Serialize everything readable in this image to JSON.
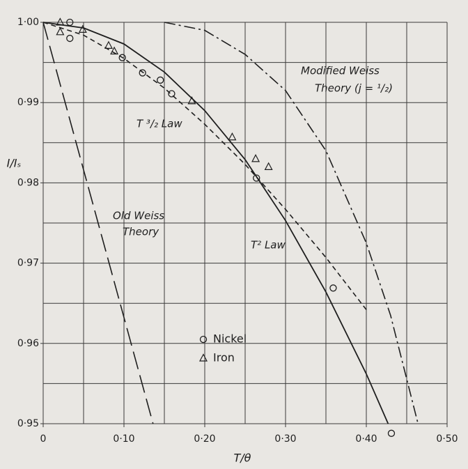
{
  "chart_data": {
    "type": "line",
    "xlabel": "T/θ",
    "ylabel": "I/Iₛ",
    "xlim": [
      0,
      0.5
    ],
    "ylim": [
      0.95,
      1.0
    ],
    "xticks": [
      0,
      {
        "value": 0.1,
        "label": "0·10"
      },
      {
        "value": 0.2,
        "label": "0·20"
      },
      {
        "value": 0.3,
        "label": "0·30"
      },
      {
        "value": 0.4,
        "label": "0·40"
      },
      {
        "value": 0.5,
        "label": "0·50"
      }
    ],
    "yticks": [
      {
        "value": 0.95,
        "label": "0·95"
      },
      {
        "value": 0.96,
        "label": "0·96"
      },
      {
        "value": 0.97,
        "label": "0·97"
      },
      {
        "value": 0.98,
        "label": "0·98"
      },
      {
        "value": 0.99,
        "label": "0·99"
      },
      {
        "value": 1.0,
        "label": "1·00"
      }
    ],
    "xgrid": [
      0,
      0.05,
      0.1,
      0.15,
      0.2,
      0.25,
      0.3,
      0.35,
      0.4,
      0.45,
      0.5
    ],
    "ygrid": [
      0.95,
      0.955,
      0.96,
      0.965,
      0.97,
      0.975,
      0.98,
      0.985,
      0.99,
      0.995,
      1.0
    ],
    "grid": true,
    "annotations": [
      "Modified Weiss",
      "Theory   (j = ¹/₂)",
      "T ³/₂ Law",
      "Old Weiss",
      "Theory",
      "T² Law"
    ],
    "series": [
      {
        "color": "#1e1e1e",
        "dash": "long-dash",
        "x": [
          0,
          0.136
        ],
        "values": [
          1.0,
          0.95
        ]
      },
      {
        "color": "#1e1e1e",
        "dash": "short-dash",
        "x": [
          0,
          0.05,
          0.1,
          0.15,
          0.2,
          0.25,
          0.3,
          0.35,
          0.4
        ],
        "values": [
          1.0,
          0.9984,
          0.9955,
          0.9918,
          0.9873,
          0.9823,
          0.9767,
          0.9707,
          0.9642
        ]
      },
      {
        "color": "#1e1e1e",
        "dash": "solid",
        "x": [
          0,
          0.05,
          0.1,
          0.15,
          0.2,
          0.25,
          0.3,
          0.35,
          0.4,
          0.427
        ],
        "values": [
          1.0,
          0.9993,
          0.9973,
          0.9938,
          0.989,
          0.9829,
          0.9753,
          0.9664,
          0.9562,
          0.95
        ]
      },
      {
        "color": "#1e1e1e",
        "dash": "dash-dot",
        "x": [
          0.15,
          0.2,
          0.25,
          0.3,
          0.35,
          0.4,
          0.43,
          0.464
        ],
        "values": [
          1.0,
          0.999,
          0.996,
          0.9915,
          0.984,
          0.9725,
          0.9635,
          0.95
        ]
      },
      {
        "name": "Nickel",
        "marker": "circle",
        "color": "#1e1e1e",
        "x": [
          0.033,
          0.033,
          0.098,
          0.123,
          0.145,
          0.159,
          0.264,
          0.359,
          0.431
        ],
        "values": [
          1.0,
          0.998,
          0.9956,
          0.9937,
          0.9928,
          0.9911,
          0.9806,
          0.9669,
          0.9488
        ]
      },
      {
        "name": "Iron",
        "marker": "triangle",
        "color": "#1e1e1e",
        "x": [
          0.021,
          0.021,
          0.049,
          0.081,
          0.088,
          0.184,
          0.234,
          0.263,
          0.279
        ],
        "values": [
          1.0,
          0.9988,
          0.9991,
          0.9971,
          0.9964,
          0.9902,
          0.9857,
          0.983,
          0.982
        ]
      }
    ]
  }
}
